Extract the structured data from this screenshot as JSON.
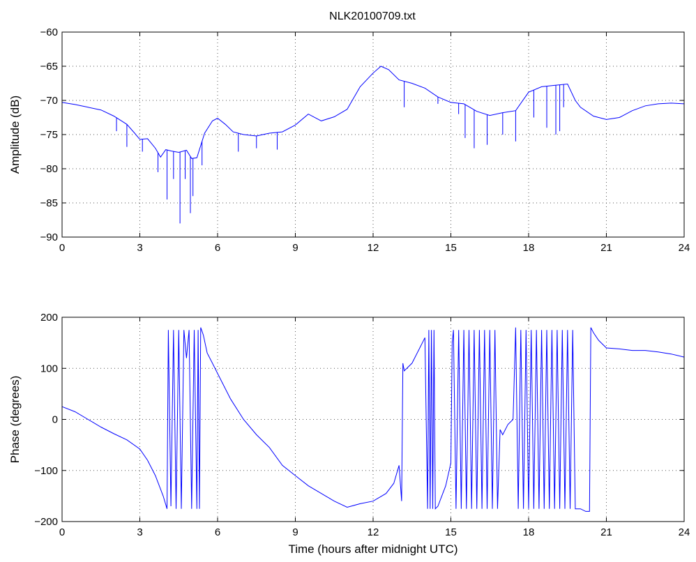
{
  "figure": {
    "title": "NLK20100709.txt"
  },
  "chart_data": [
    {
      "type": "line",
      "title": "NLK20100709.txt",
      "xlabel": "",
      "ylabel": "Amplitude (dB)",
      "xlim": [
        0,
        24
      ],
      "ylim": [
        -90,
        -60
      ],
      "xticks": [
        0,
        3,
        6,
        9,
        12,
        15,
        18,
        21,
        24
      ],
      "yticks": [
        -90,
        -85,
        -80,
        -75,
        -70,
        -65,
        -60
      ],
      "xtick_labels": [
        "0",
        "3",
        "6",
        "9",
        "12",
        "15",
        "18",
        "21",
        "24"
      ],
      "ytick_labels": [
        "−90",
        "−85",
        "−80",
        "−75",
        "−70",
        "−65",
        "−60"
      ],
      "grid": true,
      "line_color": "#0000ff",
      "series": [
        {
          "x": [
            0,
            0.5,
            1,
            1.5,
            2,
            2.5,
            2.8,
            3,
            3.3,
            3.6,
            3.8,
            4.0,
            4.2,
            4.5,
            4.8,
            5.0,
            5.2,
            5.5,
            5.8,
            6.0,
            6.3,
            6.6,
            7.0,
            7.5,
            8.0,
            8.5,
            9.0,
            9.5,
            10.0,
            10.5,
            11.0,
            11.5,
            12.0,
            12.3,
            12.6,
            13.0,
            13.5,
            14.0,
            14.5,
            15.0,
            15.5,
            16.0,
            16.5,
            17.0,
            17.5,
            18.0,
            18.5,
            19.0,
            19.5,
            19.8,
            20.0,
            20.5,
            21.0,
            21.5,
            22.0,
            22.5,
            23.0,
            23.5,
            24.0
          ],
          "y": [
            -70.3,
            -70.6,
            -71.0,
            -71.4,
            -72.3,
            -73.5,
            -74.8,
            -75.7,
            -75.6,
            -77.0,
            -78.3,
            -77.2,
            -77.4,
            -77.6,
            -77.3,
            -78.5,
            -78.4,
            -74.8,
            -73.0,
            -72.6,
            -73.5,
            -74.6,
            -75.0,
            -75.2,
            -74.8,
            -74.6,
            -73.6,
            -72.0,
            -73.0,
            -72.4,
            -71.3,
            -68.0,
            -66.0,
            -65.0,
            -65.5,
            -67.0,
            -67.5,
            -68.2,
            -69.5,
            -70.3,
            -70.5,
            -71.6,
            -72.2,
            -71.8,
            -71.5,
            -68.8,
            -68.0,
            -67.8,
            -67.6,
            -70.0,
            -71.0,
            -72.3,
            -72.8,
            -72.5,
            -71.5,
            -70.8,
            -70.5,
            -70.4,
            -70.5
          ],
          "spikes": [
            {
              "x": 2.1,
              "y": -74.5
            },
            {
              "x": 2.5,
              "y": -76.8
            },
            {
              "x": 3.1,
              "y": -77.5
            },
            {
              "x": 3.7,
              "y": -80.5
            },
            {
              "x": 4.05,
              "y": -84.5
            },
            {
              "x": 4.3,
              "y": -81.5
            },
            {
              "x": 4.55,
              "y": -88.0
            },
            {
              "x": 4.75,
              "y": -81.5
            },
            {
              "x": 4.95,
              "y": -86.5
            },
            {
              "x": 5.05,
              "y": -84.0
            },
            {
              "x": 5.4,
              "y": -79.5
            },
            {
              "x": 6.8,
              "y": -77.5
            },
            {
              "x": 7.5,
              "y": -77.0
            },
            {
              "x": 8.3,
              "y": -77.2
            },
            {
              "x": 13.2,
              "y": -71.0
            },
            {
              "x": 14.5,
              "y": -70.5
            },
            {
              "x": 15.3,
              "y": -72.0
            },
            {
              "x": 15.55,
              "y": -75.5
            },
            {
              "x": 15.9,
              "y": -77.0
            },
            {
              "x": 16.4,
              "y": -76.5
            },
            {
              "x": 17.0,
              "y": -75.0
            },
            {
              "x": 17.5,
              "y": -76.0
            },
            {
              "x": 18.2,
              "y": -72.5
            },
            {
              "x": 18.7,
              "y": -74.0
            },
            {
              "x": 19.05,
              "y": -75.0
            },
            {
              "x": 19.2,
              "y": -74.5
            },
            {
              "x": 19.35,
              "y": -71.0
            }
          ]
        }
      ]
    },
    {
      "type": "line",
      "title": "",
      "xlabel": "Time (hours after midnight UTC)",
      "ylabel": "Phase (degrees)",
      "xlim": [
        0,
        24
      ],
      "ylim": [
        -200,
        200
      ],
      "xticks": [
        0,
        3,
        6,
        9,
        12,
        15,
        18,
        21,
        24
      ],
      "yticks": [
        -200,
        -100,
        0,
        100,
        200
      ],
      "xtick_labels": [
        "0",
        "3",
        "6",
        "9",
        "12",
        "15",
        "18",
        "21",
        "24"
      ],
      "ytick_labels": [
        "−200",
        "−100",
        "0",
        "100",
        "200"
      ],
      "grid": true,
      "line_color": "#0000ff",
      "series": [
        {
          "x": [
            0,
            0.5,
            1.0,
            1.5,
            2.0,
            2.5,
            3.0,
            3.3,
            3.6,
            3.9,
            4.05,
            4.1,
            4.2,
            4.3,
            4.4,
            4.5,
            4.6,
            4.7,
            4.8,
            4.9,
            5.0,
            5.1,
            5.2,
            5.25,
            5.3,
            5.35,
            5.45,
            5.6,
            5.8,
            6.0,
            6.5,
            7.0,
            7.5,
            8.0,
            8.5,
            9.0,
            9.5,
            10.0,
            10.5,
            11.0,
            11.5,
            12.0,
            12.5,
            12.8,
            13.0,
            13.1,
            13.15,
            13.2,
            13.5,
            13.8,
            14.0,
            14.1,
            14.15,
            14.2,
            14.25,
            14.3,
            14.35,
            14.4,
            14.5,
            14.8,
            15.0,
            15.05,
            15.1,
            15.2,
            15.3,
            15.4,
            15.5,
            15.6,
            15.7,
            15.8,
            15.9,
            16.0,
            16.1,
            16.2,
            16.3,
            16.4,
            16.5,
            16.6,
            16.7,
            16.8,
            16.9,
            17.0,
            17.2,
            17.4,
            17.5,
            17.6,
            17.7,
            17.8,
            17.9,
            18.0,
            18.1,
            18.2,
            18.3,
            18.4,
            18.5,
            18.6,
            18.7,
            18.8,
            18.9,
            19.0,
            19.1,
            19.2,
            19.3,
            19.4,
            19.5,
            19.6,
            19.7,
            19.8,
            20.0,
            20.2,
            20.35,
            20.4,
            20.5,
            20.7,
            21.0,
            21.5,
            22.0,
            22.5,
            23.0,
            23.5,
            24.0
          ],
          "y": [
            25,
            15,
            0,
            -15,
            -28,
            -40,
            -58,
            -80,
            -110,
            -150,
            -175,
            175,
            -170,
            175,
            -175,
            175,
            -175,
            175,
            120,
            175,
            -175,
            175,
            -175,
            175,
            -175,
            180,
            165,
            130,
            110,
            90,
            40,
            0,
            -30,
            -55,
            -90,
            -110,
            -130,
            -145,
            -160,
            -172,
            -165,
            -160,
            -145,
            -125,
            -90,
            -160,
            110,
            95,
            110,
            140,
            160,
            -175,
            175,
            -175,
            175,
            -175,
            175,
            -175,
            -170,
            -130,
            -85,
            150,
            175,
            -175,
            175,
            -175,
            175,
            -175,
            175,
            -175,
            175,
            -175,
            175,
            -175,
            175,
            -175,
            175,
            -175,
            175,
            -175,
            -20,
            -30,
            -10,
            0,
            180,
            -175,
            175,
            -175,
            175,
            -175,
            175,
            -175,
            175,
            -175,
            175,
            -175,
            175,
            -175,
            175,
            -175,
            175,
            -175,
            175,
            -175,
            175,
            -175,
            175,
            -175,
            -175,
            -180,
            -180,
            180,
            170,
            155,
            140,
            138,
            135,
            135,
            132,
            128,
            122
          ]
        }
      ]
    }
  ]
}
